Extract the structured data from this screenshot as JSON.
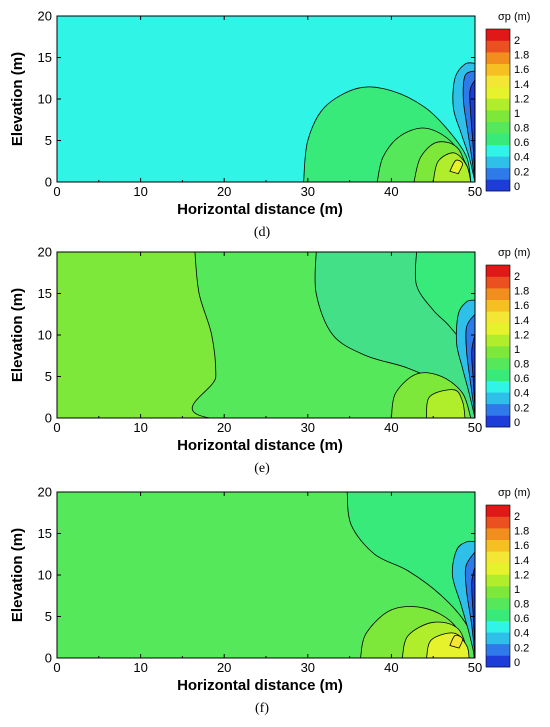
{
  "chart_data": [
    {
      "type": "contour",
      "panel_label": "(d)",
      "xlabel": "Horizontal distance (m)",
      "ylabel": "Elevation (m)",
      "xlim": [
        0,
        50
      ],
      "ylim": [
        0,
        20
      ],
      "xticks": [
        "0",
        "10",
        "20",
        "30",
        "40",
        "50"
      ],
      "yticks": [
        "0",
        "5",
        "10",
        "15",
        "20"
      ],
      "colorbar_title": "σp (m)",
      "colorbar_ticks": [
        "0",
        "0.2",
        "0.4",
        "0.6",
        "0.8",
        "1",
        "1.2",
        "1.4",
        "1.6",
        "1.8",
        "2"
      ],
      "background_level": "0.5-0.6",
      "regions": [
        {
          "level": "0.6-0.8",
          "boundary": [
            [
              29.5,
              0
            ],
            [
              30,
              5
            ],
            [
              32,
              9
            ],
            [
              36,
              11.3
            ],
            [
              40,
              11
            ],
            [
              44,
              9
            ],
            [
              47,
              6
            ],
            [
              49,
              3
            ],
            [
              49.5,
              0
            ]
          ]
        },
        {
          "level": "0.8-1.0",
          "boundary": [
            [
              38.3,
              0
            ],
            [
              39,
              3
            ],
            [
              41,
              5.5
            ],
            [
              44,
              6.5
            ],
            [
              47,
              5
            ],
            [
              49,
              2
            ],
            [
              49.5,
              0
            ]
          ]
        },
        {
          "level": "1.0-1.2",
          "boundary": [
            [
              42.7,
              0
            ],
            [
              43.5,
              3
            ],
            [
              45.5,
              4.8
            ],
            [
              48,
              4
            ],
            [
              49.5,
              0
            ]
          ]
        },
        {
          "level": "1.2-1.4",
          "boundary": [
            [
              45,
              0
            ],
            [
              45.6,
              2.5
            ],
            [
              47.5,
              3.5
            ],
            [
              49,
              2
            ],
            [
              49.5,
              0
            ]
          ]
        },
        {
          "level": "1.4-1.6",
          "boundary": [
            [
              47,
              1.3
            ],
            [
              47.7,
              2.6
            ],
            [
              48.5,
              2.2
            ],
            [
              48,
              1
            ]
          ]
        },
        {
          "level": "0.4-0.6",
          "boundary": [
            [
              50,
              0
            ],
            [
              49.3,
              3
            ],
            [
              48.3,
              6
            ],
            [
              47.4,
              9
            ],
            [
              47.6,
              12.5
            ],
            [
              48.8,
              14.2
            ],
            [
              50,
              14.3
            ]
          ]
        },
        {
          "level": "0.2-0.4",
          "boundary": [
            [
              50,
              0
            ],
            [
              49.6,
              3
            ],
            [
              49,
              7
            ],
            [
              48.6,
              10
            ],
            [
              48.8,
              12.8
            ],
            [
              50,
              13.4
            ]
          ]
        },
        {
          "level": "0-0.2",
          "boundary": [
            [
              50,
              0.3
            ],
            [
              49.8,
              4
            ],
            [
              49.5,
              8
            ],
            [
              49.4,
              11
            ],
            [
              50,
              12.3
            ]
          ]
        }
      ]
    },
    {
      "type": "contour",
      "panel_label": "(e)",
      "xlabel": "Horizontal distance (m)",
      "ylabel": "Elevation (m)",
      "xlim": [
        0,
        50
      ],
      "ylim": [
        0,
        20
      ],
      "xticks": [
        "0",
        "10",
        "20",
        "30",
        "40",
        "50"
      ],
      "yticks": [
        "0",
        "5",
        "10",
        "15",
        "20"
      ],
      "colorbar_title": "σp (m)",
      "colorbar_ticks": [
        "0",
        "0.2",
        "0.4",
        "0.6",
        "0.8",
        "1",
        "1.2",
        "1.4",
        "1.6",
        "1.8",
        "2"
      ],
      "background_level": "1.0-1.2",
      "regions": [
        {
          "level": "0.8-1.0",
          "boundary": [
            [
              16.5,
              20
            ],
            [
              17,
              15
            ],
            [
              18.5,
              10
            ],
            [
              19,
              5
            ],
            [
              18.3,
              0
            ],
            [
              50,
              0
            ],
            [
              50,
              20
            ]
          ]
        },
        {
          "level": "0.8-1.0 (inner)",
          "boundary": [
            [
              31,
              20
            ],
            [
              31,
              15
            ],
            [
              33,
              10
            ],
            [
              37,
              7.5
            ],
            [
              42,
              6
            ],
            [
              47,
              3.5
            ],
            [
              49.5,
              0
            ],
            [
              50,
              0
            ],
            [
              50,
              20
            ]
          ]
        },
        {
          "level": "0.6-0.8",
          "boundary": [
            [
              43,
              20
            ],
            [
              43,
              16
            ],
            [
              45,
              13
            ],
            [
              47,
              11
            ],
            [
              49,
              8
            ],
            [
              49.8,
              3
            ],
            [
              50,
              0
            ],
            [
              50,
              20
            ]
          ]
        },
        {
          "level": "1.0-1.2",
          "boundary": [
            [
              40,
              0
            ],
            [
              40.5,
              3
            ],
            [
              43,
              5.3
            ],
            [
              46,
              5
            ],
            [
              48.5,
              3
            ],
            [
              49.5,
              0
            ]
          ]
        },
        {
          "level": "1.2-1.4",
          "boundary": [
            [
              44.2,
              0
            ],
            [
              44.6,
              2.6
            ],
            [
              47.5,
              3.4
            ],
            [
              48.5,
              2
            ],
            [
              48.8,
              0
            ]
          ]
        },
        {
          "level": "0.4-0.6",
          "boundary": [
            [
              50,
              0
            ],
            [
              49.3,
              3
            ],
            [
              48.5,
              6
            ],
            [
              47.8,
              9
            ],
            [
              48,
              12.5
            ],
            [
              49,
              14
            ],
            [
              50,
              14.2
            ]
          ]
        },
        {
          "level": "0.2-0.4",
          "boundary": [
            [
              50,
              0.3
            ],
            [
              49.5,
              4
            ],
            [
              49,
              8
            ],
            [
              49,
              11
            ],
            [
              50,
              12.5
            ]
          ]
        },
        {
          "level": "0-0.2",
          "boundary": [
            [
              50,
              1
            ],
            [
              49.8,
              4.5
            ],
            [
              49.6,
              8
            ],
            [
              50,
              10
            ]
          ]
        }
      ]
    },
    {
      "type": "contour",
      "panel_label": "(f)",
      "xlabel": "Horizontal distance (m)",
      "ylabel": "Elevation (m)",
      "xlim": [
        0,
        50
      ],
      "ylim": [
        0,
        20
      ],
      "xticks": [
        "0",
        "10",
        "20",
        "30",
        "40",
        "50"
      ],
      "yticks": [
        "0",
        "5",
        "10",
        "15",
        "20"
      ],
      "colorbar_title": "σp (m)",
      "colorbar_ticks": [
        "0",
        "0.2",
        "0.4",
        "0.6",
        "0.8",
        "1",
        "1.2",
        "1.4",
        "1.6",
        "1.8",
        "2"
      ],
      "background_level": "0.8-1.0",
      "regions": [
        {
          "level": "0.6-0.8",
          "boundary": [
            [
              34.7,
              20
            ],
            [
              35.2,
              16
            ],
            [
              38,
              12.5
            ],
            [
              42,
              10.5
            ],
            [
              46,
              7.5
            ],
            [
              49,
              4
            ],
            [
              49.8,
              1
            ],
            [
              50,
              0
            ],
            [
              50,
              20
            ]
          ]
        },
        {
          "level": "1.0-1.2",
          "boundary": [
            [
              36.3,
              0
            ],
            [
              37,
              3
            ],
            [
              40,
              5.8
            ],
            [
              44,
              6
            ],
            [
              47.5,
              4
            ],
            [
              49.3,
              0
            ]
          ]
        },
        {
          "level": "1.2-1.4",
          "boundary": [
            [
              41.3,
              0
            ],
            [
              42,
              2.7
            ],
            [
              45,
              4.3
            ],
            [
              48,
              3.5
            ],
            [
              49.3,
              0
            ]
          ]
        },
        {
          "level": "1.4-1.6",
          "boundary": [
            [
              44.2,
              0
            ],
            [
              44.8,
              2.2
            ],
            [
              47.5,
              3
            ],
            [
              49,
              1.5
            ],
            [
              49.3,
              0
            ]
          ]
        },
        {
          "level": "1.6-1.8",
          "boundary": [
            [
              47,
              1.5
            ],
            [
              47.6,
              2.7
            ],
            [
              48.5,
              2.3
            ],
            [
              48.1,
              1.2
            ]
          ]
        },
        {
          "level": "0.4-0.6",
          "boundary": [
            [
              50,
              0
            ],
            [
              49.3,
              3
            ],
            [
              48.3,
              6.5
            ],
            [
              47.3,
              10
            ],
            [
              47.8,
              13
            ],
            [
              49,
              14
            ],
            [
              50,
              14
            ]
          ]
        },
        {
          "level": "0.2-0.4",
          "boundary": [
            [
              50,
              0.3
            ],
            [
              49.6,
              4
            ],
            [
              49,
              8
            ],
            [
              48.9,
              11
            ],
            [
              50,
              12.8
            ]
          ]
        },
        {
          "level": "0-0.2",
          "boundary": [
            [
              50,
              1
            ],
            [
              49.8,
              5
            ],
            [
              49.6,
              9
            ],
            [
              50,
              11
            ]
          ]
        }
      ]
    }
  ],
  "level_colors": {
    "0-0.2": "#1e3cd8",
    "0.2-0.4": "#2e7ae8",
    "0.4-0.6": "#2fc0ea",
    "0.5-0.6": "#2ff4e6",
    "0.6-0.8": "#37ea7a",
    "0.8-1.0": "#55e85a",
    "0.8-1.0 (inner)": "#44e088",
    "1.0-1.2": "#7ee83a",
    "1.2-1.4": "#b0ee2c",
    "1.4-1.6": "#e6f22c",
    "1.6-1.8": "#f3e634"
  },
  "colorbar_colors": [
    "#1e3cd8",
    "#2e7ae8",
    "#2fc0ea",
    "#2ff4e6",
    "#37ea7a",
    "#55e85a",
    "#7ee83a",
    "#b0ee2c",
    "#e6f22c",
    "#f3e634",
    "#f6c022",
    "#f28e1e",
    "#ea5020",
    "#e01818"
  ]
}
